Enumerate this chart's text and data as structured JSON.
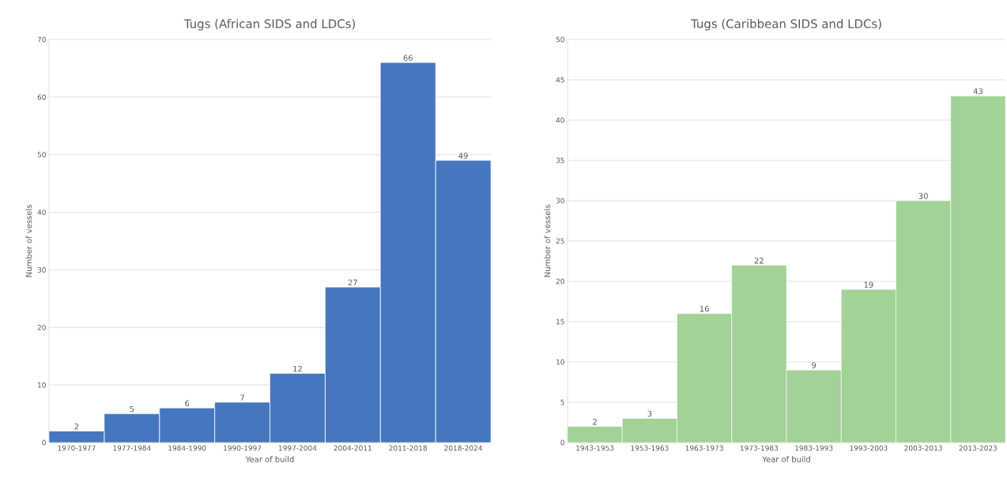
{
  "chart_data": [
    {
      "type": "bar",
      "title": "Tugs (African SIDS and LDCs)",
      "xlabel": "Year of build",
      "ylabel": "Number of vessels",
      "categories": [
        "1970-1977",
        "1977-1984",
        "1984-1990",
        "1990-1997",
        "1997-2004",
        "2004-2011",
        "2011-2018",
        "2018-2024"
      ],
      "values": [
        2,
        5,
        6,
        7,
        12,
        27,
        66,
        49
      ],
      "color": "#4677be",
      "ylim": [
        0,
        70
      ],
      "yticks": [
        0,
        10,
        20,
        30,
        40,
        50,
        60,
        70
      ],
      "grid": "y",
      "data_labels": true
    },
    {
      "type": "bar",
      "title": "Tugs (Caribbean SIDS and LDCs)",
      "xlabel": "Year of build",
      "ylabel": "Number of vessels",
      "categories": [
        "1943-1953",
        "1953-1963",
        "1963-1973",
        "1973-1983",
        "1983-1993",
        "1993-2003",
        "2003-2013",
        "2013-2023"
      ],
      "values": [
        2,
        3,
        16,
        22,
        9,
        19,
        30,
        43
      ],
      "color": "#a2d296",
      "ylim": [
        0,
        50
      ],
      "yticks": [
        0,
        5,
        10,
        15,
        20,
        25,
        30,
        35,
        40,
        45,
        50
      ],
      "grid": "y",
      "data_labels": true
    }
  ]
}
